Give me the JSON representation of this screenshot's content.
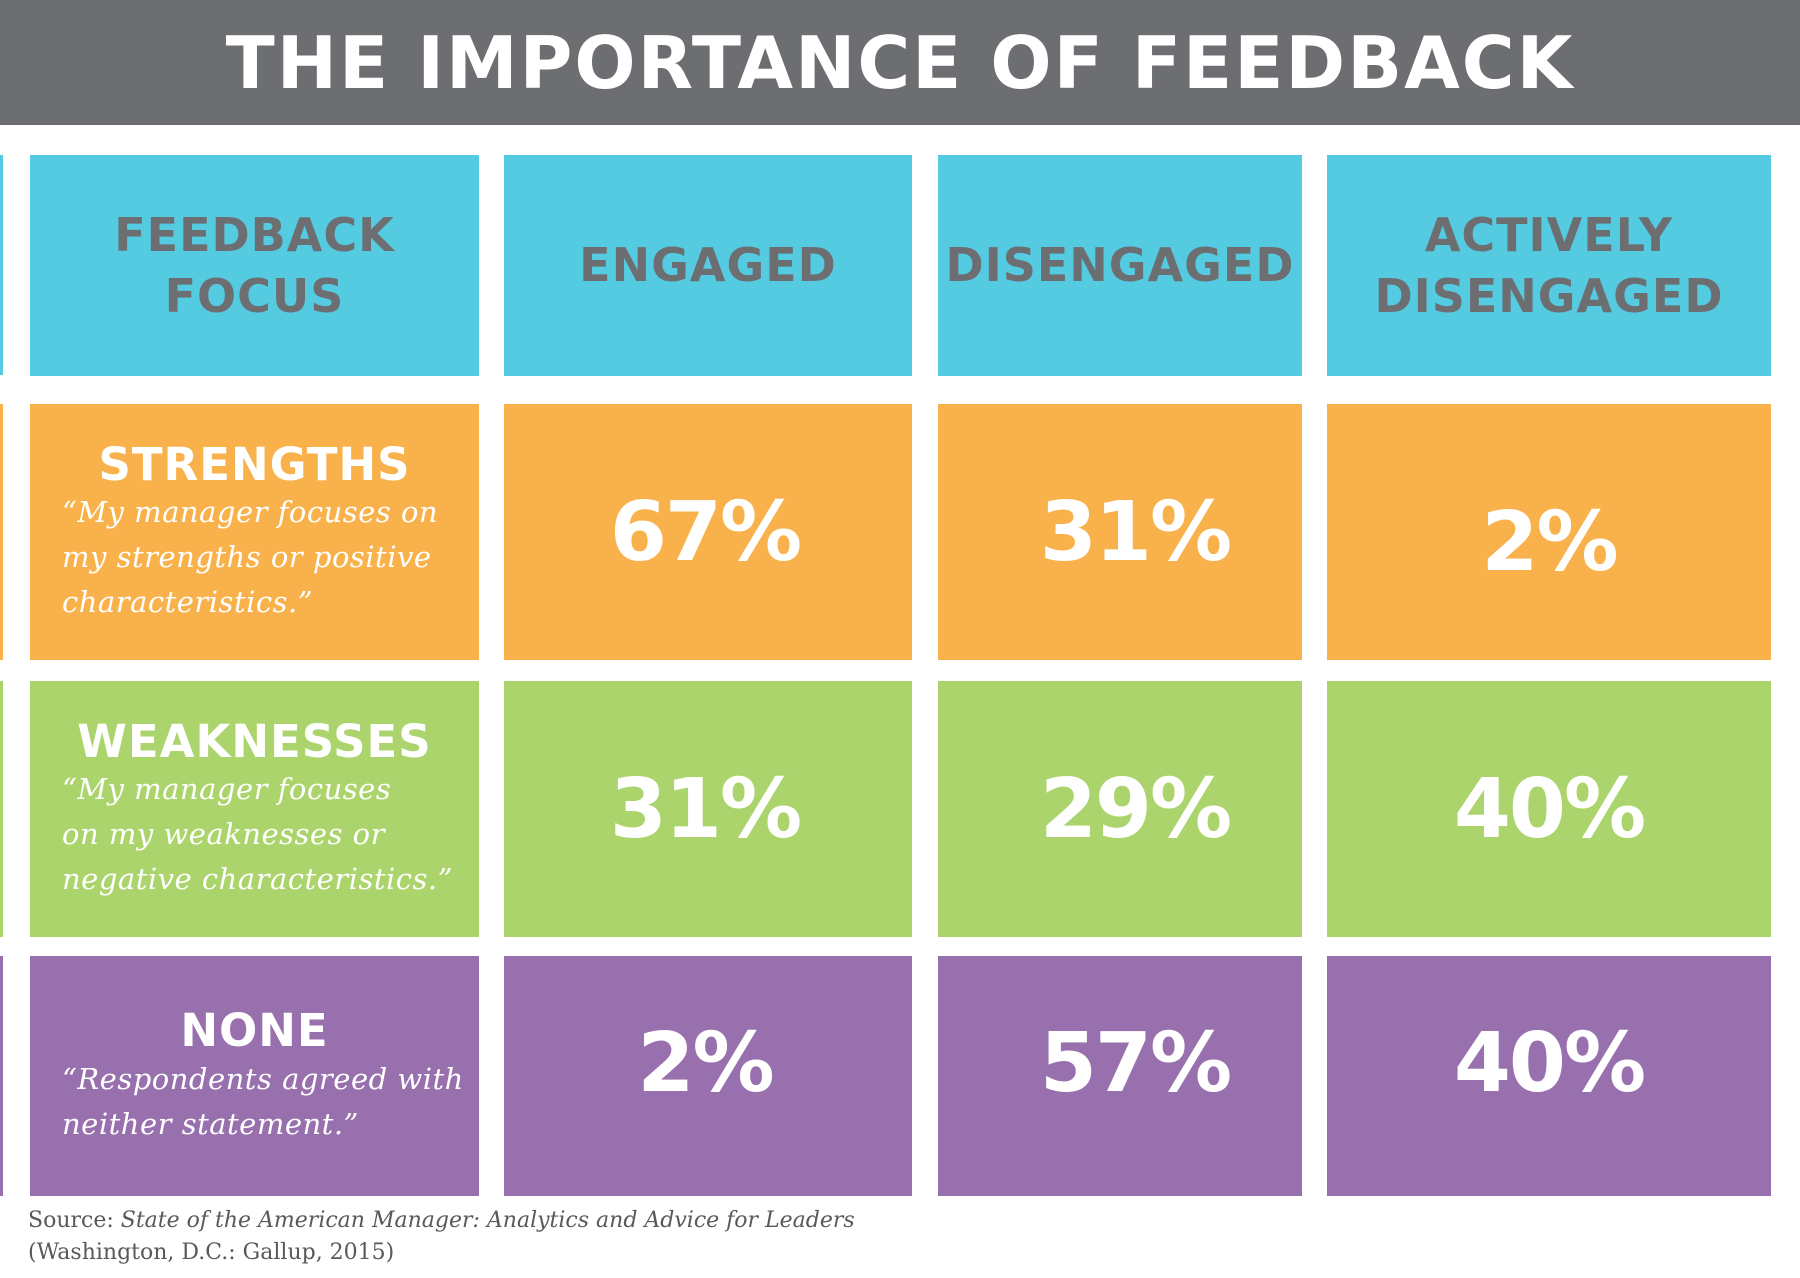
{
  "title": "THE IMPORTANCE OF FEEDBACK",
  "colors": {
    "title_bar": "#6d6e71",
    "header_cells": "#54cbe0",
    "header_text": "#6d6e71",
    "strengths": "#f9b24b",
    "weaknesses": "#acd46c",
    "none": "#9870ae",
    "value_text": "#ffffff"
  },
  "chart_data": {
    "type": "table",
    "columns": [
      "FEEDBACK\nFOCUS",
      "ENGAGED",
      "DISENGAGED",
      "ACTIVELY\nDISENGAGED"
    ],
    "rows": [
      {
        "label": "STRENGTHS",
        "quote": "“My manager focuses on\nmy strengths or positive\ncharacteristics.”",
        "values": [
          "67%",
          "31%",
          "2%"
        ]
      },
      {
        "label": "WEAKNESSES",
        "quote": "“My manager focuses\non my weaknesses or\nnegative characteristics.”",
        "values": [
          "31%",
          "29%",
          "40%"
        ]
      },
      {
        "label": "NONE",
        "quote": "“Respondents agreed with\nneither statement.”",
        "values": [
          "2%",
          "57%",
          "40%"
        ]
      }
    ]
  },
  "source": {
    "prefix": "Source: ",
    "title": "State of the American Manager: Analytics and Advice for Leaders",
    "publisher": "(Washington, D.C.: Gallup, 2015)"
  }
}
